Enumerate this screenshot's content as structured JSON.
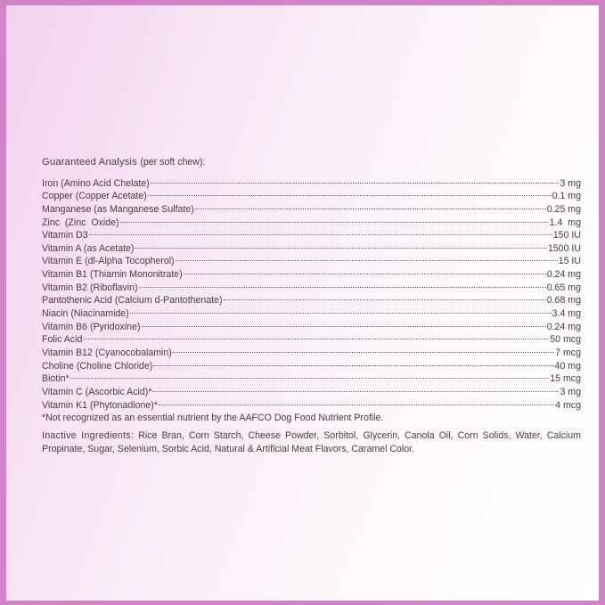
{
  "colors": {
    "border": "#d083c6",
    "text": "#4a3b3b"
  },
  "analysis": {
    "title": "Guaranteed Analysis",
    "subtitle": "(per soft chew):",
    "items": [
      {
        "name": "Iron (Amino Acid Chelate)",
        "value": "3 mg"
      },
      {
        "name": "Copper (Copper Acetate)",
        "value": "0.1 mg"
      },
      {
        "name": "Manganese (as Manganese Sulfate)",
        "value": "0.25 mg"
      },
      {
        "name": "Zinc  (Zinc  Oxide)",
        "value": "1.4  mg"
      },
      {
        "name": "Vitamin D3",
        "value": "150 IU"
      },
      {
        "name": "Vitamin A (as Acetate)",
        "value": "1500 IU"
      },
      {
        "name": "Vitamin E (dl-Alpha Tocopherol)",
        "value": "15 IU"
      },
      {
        "name": "Vitamin B1 (Thiamin Mononitrate)",
        "value": "0.24 mg"
      },
      {
        "name": "Vitamin B2 (Riboflavin)",
        "value": "0.65 mg"
      },
      {
        "name": "Pantothenic Acid (Calcium d-Pantothenate)",
        "value": "0.68 mg"
      },
      {
        "name": "Niacin (Niacinamide)",
        "value": "3.4 mg"
      },
      {
        "name": "Vitamin B6 (Pyridoxine)",
        "value": "0.24 mg"
      },
      {
        "name": "Folic Acid",
        "value": "50 mcg"
      },
      {
        "name": "Vitamin B12 (Cyanocobalamin)",
        "value": "7 mcg"
      },
      {
        "name": "Choline (Choline Chloride)",
        "value": "40 mg"
      },
      {
        "name": "Biotin*",
        "value": "15 mcg"
      },
      {
        "name": "Vitamin C (Ascorbic Acid)*",
        "value": "3 mg"
      },
      {
        "name": "Vitamin K1 (Phytonadione)*",
        "value": "4 mcg"
      }
    ]
  },
  "footnote": "*Not recognized as an essential nutrient by the AAFCO Dog Food Nutrient Profile.",
  "inactive": {
    "label": "Inactive Ingredients:",
    "text": "Rice Bran, Corn Starch, Cheese Powder, Sorbitol, Glycerin, Canola Oil, Corn Solids, Water, Calcium Propinate, Sugar, Selenium, Sorbic Acid, Natural & Artificial Meat Flavors, Caramel Color."
  }
}
